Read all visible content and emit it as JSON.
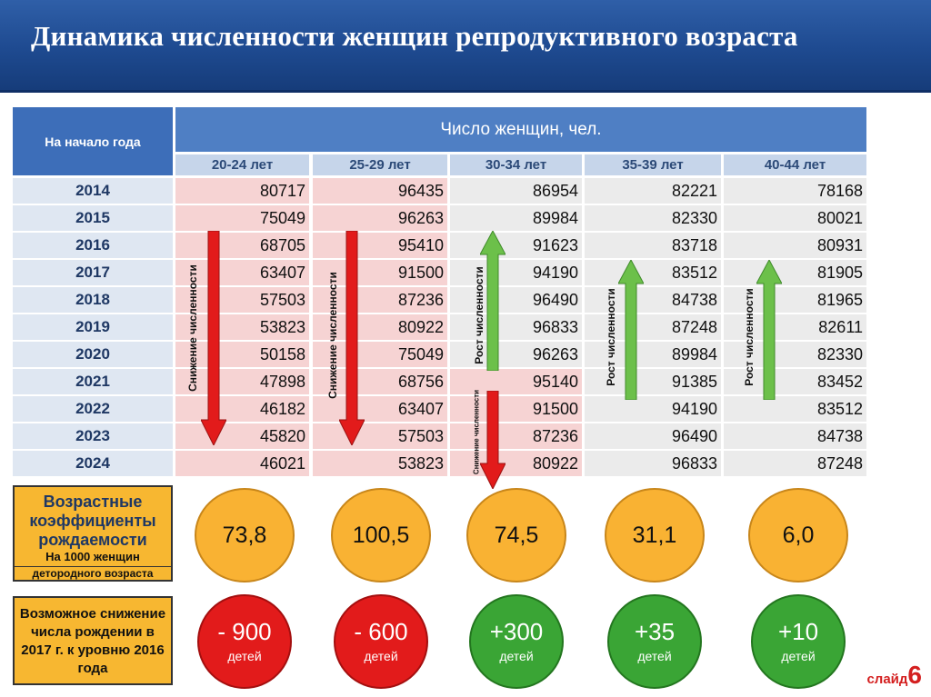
{
  "header": {
    "title": "Динамика численности женщин репродуктивного возраста"
  },
  "table": {
    "year_header": "На начало года",
    "main_header": "Число женщин, чел.",
    "age_groups": [
      "20-24 лет",
      "25-29 лет",
      "30-34 лет",
      "35-39 лет",
      "40-44 лет"
    ],
    "rows": [
      {
        "year": "2014",
        "values": [
          "80717",
          "96435",
          "86954",
          "82221",
          "78168"
        ]
      },
      {
        "year": "2015",
        "values": [
          "75049",
          "96263",
          "89984",
          "82330",
          "80021"
        ]
      },
      {
        "year": "2016",
        "values": [
          "68705",
          "95410",
          "91623",
          "83718",
          "80931"
        ]
      },
      {
        "year": "2017",
        "values": [
          "63407",
          "91500",
          "94190",
          "83512",
          "81905"
        ]
      },
      {
        "year": "2018",
        "values": [
          "57503",
          "87236",
          "96490",
          "84738",
          "81965"
        ]
      },
      {
        "year": "2019",
        "values": [
          "53823",
          "80922",
          "96833",
          "87248",
          "82611"
        ]
      },
      {
        "year": "2020",
        "values": [
          "50158",
          "75049",
          "96263",
          "89984",
          "82330"
        ]
      },
      {
        "year": "2021",
        "values": [
          "47898",
          "68756",
          "95140",
          "91385",
          "83452"
        ]
      },
      {
        "year": "2022",
        "values": [
          "46182",
          "63407",
          "91500",
          "94190",
          "83512"
        ]
      },
      {
        "year": "2023",
        "values": [
          "45820",
          "57503",
          "87236",
          "96490",
          "84738"
        ]
      },
      {
        "year": "2024",
        "values": [
          "46021",
          "53823",
          "80922",
          "96833",
          "87248"
        ]
      }
    ]
  },
  "trends": {
    "decrease": "Снижение численности",
    "increase": "Рост численности"
  },
  "colors": {
    "decrease": "#e21b1b",
    "increase": "#6cc04a",
    "header": "#1e4a90",
    "accent": "#f7b731"
  },
  "coefficients": {
    "title": "Возрастные коэффициенты рождаемости",
    "sub1": "На 1000 женщин",
    "sub2": "детородного возраста",
    "values": [
      "73,8",
      "100,5",
      "74,5",
      "31,1",
      "6,0"
    ]
  },
  "changes": {
    "title": "Возможное снижение числа рождении в 2017 г. к уровню 2016 года",
    "unit": "детей",
    "values": [
      "- 900",
      "- 600",
      "+300",
      "+35",
      "+10"
    ]
  },
  "slide": {
    "word": "слайд",
    "number": "6"
  }
}
